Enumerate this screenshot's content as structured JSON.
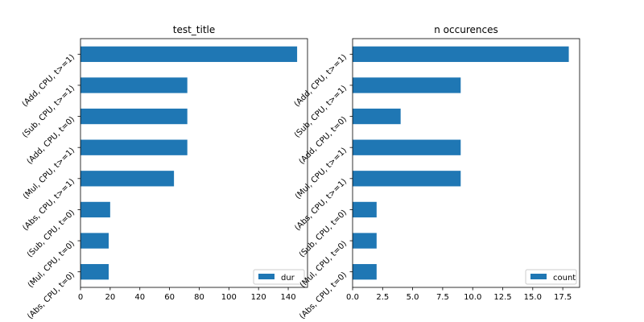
{
  "chart_data": [
    {
      "type": "bar",
      "orientation": "horizontal",
      "title": "test_title",
      "xlabel": "",
      "ylabel": "",
      "categories": [
        "(Add, CPU, t>=1)",
        "(Sub, CPU, t>=1)",
        "(Add, CPU, t=0)",
        "(Mul, CPU, t>=1)",
        "(Abs, CPU, t>=1)",
        "(Sub, CPU, t=0)",
        "(Mul, CPU, t=0)",
        "(Abs, CPU, t=0)"
      ],
      "series": [
        {
          "name": "dur",
          "values": [
            146,
            72,
            72,
            72,
            63,
            20,
            19,
            19
          ],
          "color": "#1f77b4"
        }
      ],
      "xlim": [
        0,
        153
      ],
      "xticks": [
        0,
        20,
        40,
        60,
        80,
        100,
        120,
        140
      ],
      "xtick_labels": [
        "0",
        "20",
        "40",
        "60",
        "80",
        "100",
        "120",
        "140"
      ],
      "grid": false,
      "legend": "lower right"
    },
    {
      "type": "bar",
      "orientation": "horizontal",
      "title": "n occurences",
      "xlabel": "",
      "ylabel": "",
      "categories": [
        "(Add, CPU, t>=1)",
        "(Sub, CPU, t>=1)",
        "(Add, CPU, t=0)",
        "(Mul, CPU, t>=1)",
        "(Abs, CPU, t>=1)",
        "(Sub, CPU, t=0)",
        "(Mul, CPU, t=0)",
        "(Abs, CPU, t=0)"
      ],
      "series": [
        {
          "name": "count",
          "values": [
            18,
            9,
            4,
            9,
            9,
            2,
            2,
            2
          ],
          "color": "#1f77b4"
        }
      ],
      "xlim": [
        0,
        18.9
      ],
      "xticks": [
        0,
        2.5,
        5,
        7.5,
        10,
        12.5,
        15,
        17.5
      ],
      "xtick_labels": [
        "0.0",
        "2.5",
        "5.0",
        "7.5",
        "10.0",
        "12.5",
        "15.0",
        "17.5"
      ],
      "grid": false,
      "legend": "lower right"
    }
  ]
}
